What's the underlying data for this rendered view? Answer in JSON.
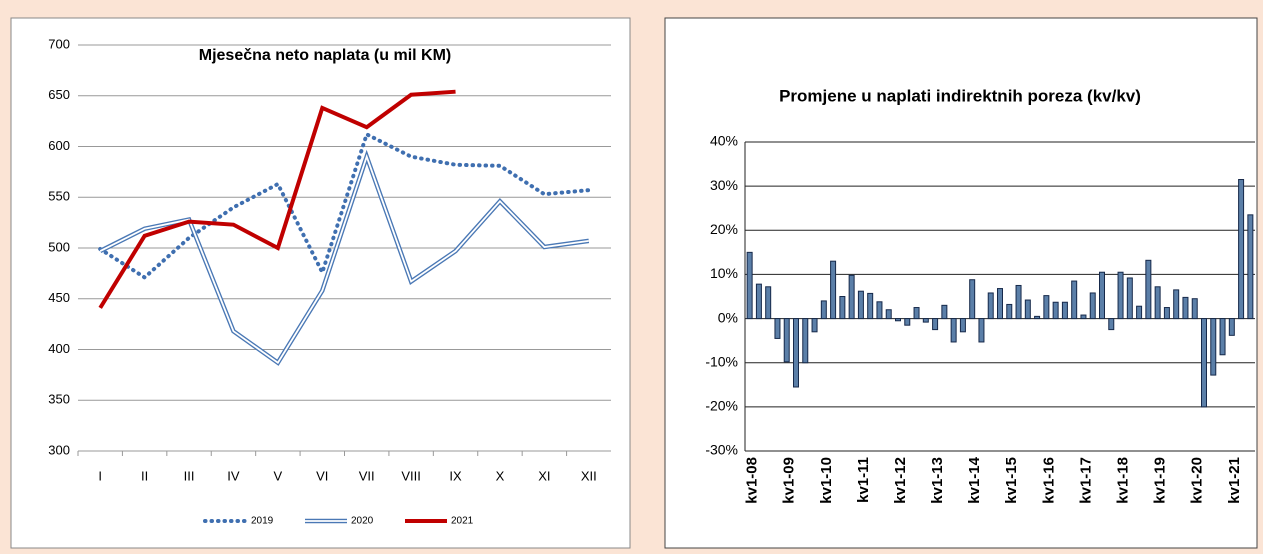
{
  "chart_data": [
    {
      "type": "line",
      "title": "Mjesečna neto naplata (u mil KM)",
      "categories": [
        "I",
        "II",
        "III",
        "IV",
        "V",
        "VI",
        "VII",
        "VIII",
        "IX",
        "X",
        "XI",
        "XII"
      ],
      "series": [
        {
          "name": "2019",
          "color": "#3f6fb0",
          "style": "dotted",
          "values": [
            499,
            471,
            510,
            540,
            563,
            476,
            612,
            590,
            582,
            581,
            553,
            557
          ]
        },
        {
          "name": "2020",
          "color": "#4a78b5",
          "style": "double",
          "values": [
            497,
            519,
            528,
            418,
            387,
            458,
            590,
            467,
            497,
            546,
            501,
            507
          ]
        },
        {
          "name": "2021",
          "color": "#c00000",
          "style": "solid",
          "values": [
            441,
            512,
            526,
            523,
            500,
            638,
            619,
            651,
            654,
            null,
            null,
            null
          ]
        }
      ],
      "ylim": [
        300,
        700
      ],
      "yticks": [
        300,
        350,
        400,
        450,
        500,
        550,
        600,
        650,
        700
      ],
      "grid": true,
      "legend": "bottom"
    },
    {
      "type": "bar",
      "title": "Promjene u naplati indirektnih poreza (kv/kv)",
      "categories": [
        "kv1-08",
        null,
        null,
        null,
        "kv1-09",
        null,
        null,
        null,
        "kv1-10",
        null,
        null,
        null,
        "kv1-11",
        null,
        null,
        null,
        "kv1-12",
        null,
        null,
        null,
        "kv1-13",
        null,
        null,
        null,
        "kv1-14",
        null,
        null,
        null,
        "kv1-15",
        null,
        null,
        null,
        "kv1-16",
        null,
        null,
        null,
        "kv1-17",
        null,
        null,
        null,
        "kv1-18",
        null,
        null,
        null,
        "kv1-19",
        null,
        null,
        null,
        "kv1-20",
        null,
        null,
        null,
        "kv1-21",
        null,
        null
      ],
      "values": [
        15,
        7.8,
        7.2,
        -4.5,
        -9.8,
        -15.5,
        -10,
        -3,
        4,
        13,
        5,
        9.8,
        6.2,
        5.7,
        3.8,
        2,
        -0.5,
        -1.5,
        2.5,
        -0.8,
        -2.5,
        3,
        -5.3,
        -3,
        8.8,
        -5.3,
        5.8,
        6.8,
        3.2,
        7.5,
        4.2,
        0.5,
        5.2,
        3.7,
        3.7,
        8.5,
        0.8,
        5.8,
        10.5,
        -2.5,
        10.5,
        9.2,
        2.8,
        13.2,
        7.2,
        2.5,
        6.5,
        4.8,
        4.5,
        -20,
        -12.8,
        -8.2,
        -3.8,
        31.5,
        23.5
      ],
      "color": "#5b7fa8",
      "ylim": [
        -30,
        40
      ],
      "yticks": [
        {
          "value": -30,
          "label": "-30%"
        },
        {
          "value": -20,
          "label": "-20%"
        },
        {
          "value": -10,
          "label": "-10%"
        },
        {
          "value": 0,
          "label": "0%"
        },
        {
          "value": 10,
          "label": "10%"
        },
        {
          "value": 20,
          "label": "20%"
        },
        {
          "value": 30,
          "label": "30%"
        },
        {
          "value": 40,
          "label": "40%"
        }
      ],
      "grid": true
    }
  ]
}
